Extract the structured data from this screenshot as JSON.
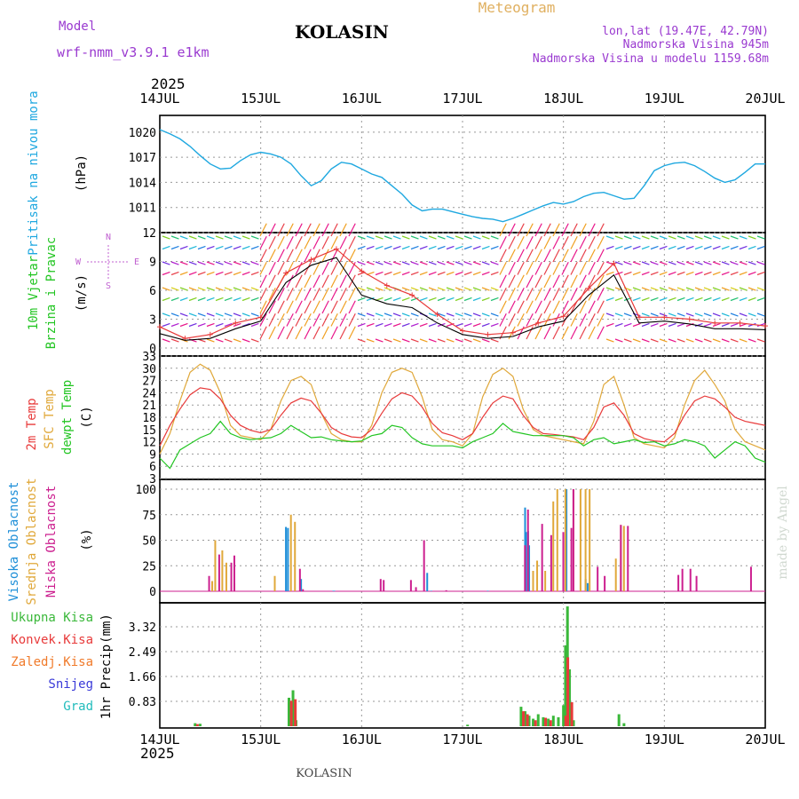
{
  "header": {
    "model_label": "Model",
    "model_name": "wrf-nmm_v3.9.1 e1km",
    "station": "KOLASIN",
    "product": "Meteogram",
    "coords": "lon,lat (19.47E, 42.79N)",
    "elevation": "Nadmorska Visina 945m",
    "model_elevation": "Nadmorska Visina u modelu 1159.68m",
    "year": "2025",
    "credit": "made by Angel",
    "footer_station": "KOLASIN"
  },
  "colors": {
    "pressure": "#1fa8e0",
    "temp2m": "#e83a3a",
    "sfc_temp": "#e0a83a",
    "dewpt": "#22c522",
    "cloud_high": "#1f8fd8",
    "cloud_mid": "#e0a83a",
    "cloud_low": "#cc1f8f",
    "precip_total": "#3ab83a",
    "precip_conv": "#e83a3a",
    "precip_frozen": "#f07a2a",
    "snow": "#3a3ad8",
    "hail": "#22bcbc",
    "model_title": "#9a3ad0",
    "meteogram_title": "#e0b060"
  },
  "chart_data": [
    {
      "type": "line",
      "panel": "pressure",
      "ylabel": "Pritisak na nivou mora",
      "unit": "(hPa)",
      "x_ticks": [
        "14JUL",
        "15JUL",
        "16JUL",
        "17JUL",
        "18JUL",
        "19JUL",
        "20JUL"
      ],
      "yticks": [
        "1020",
        "1017",
        "1014",
        "1011"
      ],
      "ylim": [
        1008,
        1022
      ],
      "series": [
        {
          "x": [
            0,
            0.1,
            0.2,
            0.3,
            0.4,
            0.5,
            0.6,
            0.7,
            0.8,
            0.9,
            1.0,
            1.1,
            1.2,
            1.3,
            1.4,
            1.5,
            1.6,
            1.7,
            1.8,
            1.9,
            2.0,
            2.1,
            2.2,
            2.3,
            2.4,
            2.5,
            2.6,
            2.7,
            2.8,
            2.9,
            3.0,
            3.1,
            3.2,
            3.3,
            3.4,
            3.5,
            3.6,
            3.7,
            3.8,
            3.9,
            4.0,
            4.1,
            4.2,
            4.3,
            4.4,
            4.5,
            4.6,
            4.7,
            4.8,
            4.9,
            5.0,
            5.1,
            5.2,
            5.3,
            5.4,
            5.5,
            5.6,
            5.7,
            5.8,
            5.9,
            6.0
          ],
          "values": [
            1020.3,
            1019.8,
            1019.2,
            1018.3,
            1017.2,
            1016.2,
            1015.6,
            1015.7,
            1016.6,
            1017.3,
            1017.6,
            1017.4,
            1017.0,
            1016.2,
            1014.8,
            1013.6,
            1014.2,
            1015.6,
            1016.4,
            1016.2,
            1015.6,
            1015.0,
            1014.6,
            1013.6,
            1012.6,
            1011.3,
            1010.6,
            1010.8,
            1010.8,
            1010.5,
            1010.2,
            1009.9,
            1009.7,
            1009.6,
            1009.3,
            1009.7,
            1010.2,
            1010.7,
            1011.2,
            1011.6,
            1011.4,
            1011.7,
            1012.3,
            1012.7,
            1012.8,
            1012.4,
            1012.0,
            1012.1,
            1013.6,
            1015.4,
            1016.0,
            1016.3,
            1016.4,
            1016.0,
            1015.3,
            1014.5,
            1014.0,
            1014.3,
            1015.2,
            1016.2,
            1016.2
          ]
        }
      ]
    },
    {
      "type": "line",
      "panel": "wind",
      "ylabel": "10m Vjetar",
      "ylabel2": "Brzina i Pravac",
      "unit": "(m/s)",
      "compass": {
        "n": "N",
        "w": "W",
        "e": "E",
        "s": "S"
      },
      "yticks": [
        "12",
        "9",
        "6",
        "3",
        "0"
      ],
      "ylim": [
        0,
        12
      ],
      "series": [
        {
          "name": "speed",
          "x": [
            0,
            0.25,
            0.5,
            0.75,
            1.0,
            1.25,
            1.5,
            1.75,
            2.0,
            2.25,
            2.5,
            2.75,
            3.0,
            3.25,
            3.5,
            3.75,
            4.0,
            4.25,
            4.5,
            4.75,
            5.0,
            5.25,
            5.5,
            5.75,
            6.0
          ],
          "values": [
            2.2,
            1.0,
            1.4,
            2.6,
            3.2,
            7.8,
            9.2,
            10.3,
            8.0,
            6.5,
            5.5,
            3.5,
            1.8,
            1.4,
            1.6,
            2.6,
            3.3,
            6.2,
            8.8,
            3.2,
            3.2,
            3.0,
            2.6,
            2.6,
            2.3
          ]
        },
        {
          "name": "gust",
          "x": [
            0,
            0.25,
            0.5,
            0.75,
            1.0,
            1.25,
            1.5,
            1.75,
            2.0,
            2.25,
            2.5,
            2.75,
            3.0,
            3.25,
            3.5,
            3.75,
            4.0,
            4.25,
            4.5,
            4.75,
            5.0,
            5.25,
            5.5,
            5.75,
            6.0
          ],
          "values": [
            1.5,
            0.8,
            1.0,
            2.0,
            2.8,
            6.8,
            8.6,
            9.4,
            5.5,
            4.6,
            4.2,
            2.6,
            1.4,
            1.0,
            1.2,
            2.2,
            2.8,
            5.5,
            7.6,
            2.6,
            2.8,
            2.5,
            2.0,
            2.0,
            1.9
          ]
        }
      ]
    },
    {
      "type": "line",
      "panel": "temperature",
      "ylabel": "2m Temp",
      "ylabel2": "SFC Temp",
      "ylabel3": "dewpt Temp",
      "unit": "(C)",
      "yticks": [
        "33",
        "30",
        "27",
        "24",
        "21",
        "18",
        "15",
        "12",
        "9",
        "6",
        "3"
      ],
      "ylim": [
        3,
        33
      ],
      "series": [
        {
          "name": "2m Temp",
          "x": [
            0,
            0.1,
            0.2,
            0.3,
            0.4,
            0.5,
            0.6,
            0.7,
            0.8,
            0.9,
            1.0,
            1.1,
            1.2,
            1.3,
            1.4,
            1.5,
            1.6,
            1.7,
            1.8,
            1.9,
            2.0,
            2.1,
            2.2,
            2.3,
            2.4,
            2.5,
            2.6,
            2.7,
            2.8,
            2.9,
            3.0,
            3.1,
            3.2,
            3.3,
            3.4,
            3.5,
            3.6,
            3.7,
            3.8,
            3.9,
            4.0,
            4.1,
            4.2,
            4.3,
            4.4,
            4.5,
            4.6,
            4.7,
            4.8,
            4.9,
            5.0,
            5.1,
            5.2,
            5.3,
            5.4,
            5.5,
            5.6,
            5.7,
            5.8,
            5.9,
            6.0
          ],
          "values": [
            11,
            16,
            20,
            23.5,
            25.2,
            24.8,
            22.5,
            18.5,
            16,
            14.8,
            14.2,
            15,
            18.5,
            21.5,
            22.7,
            22,
            19,
            15.5,
            14,
            13.2,
            13,
            15,
            19,
            22.5,
            24,
            23.2,
            20.5,
            16.5,
            14.2,
            13.5,
            12.5,
            14,
            18,
            21.5,
            23.2,
            22.5,
            18.5,
            15.5,
            14,
            13.8,
            13.5,
            13.2,
            12.5,
            15.5,
            20.5,
            21.5,
            18.5,
            14,
            12.8,
            12.2,
            12,
            14,
            18.5,
            22,
            23.2,
            22.5,
            20.5,
            18,
            17,
            16.5,
            16
          ]
        },
        {
          "name": "SFC Temp",
          "x": [
            0,
            0.1,
            0.2,
            0.3,
            0.4,
            0.5,
            0.6,
            0.7,
            0.8,
            0.9,
            1.0,
            1.1,
            1.2,
            1.3,
            1.4,
            1.5,
            1.6,
            1.7,
            1.8,
            1.9,
            2.0,
            2.1,
            2.2,
            2.3,
            2.4,
            2.5,
            2.6,
            2.7,
            2.8,
            2.9,
            3.0,
            3.1,
            3.2,
            3.3,
            3.4,
            3.5,
            3.6,
            3.7,
            3.8,
            3.9,
            4.0,
            4.1,
            4.2,
            4.3,
            4.4,
            4.5,
            4.6,
            4.7,
            4.8,
            4.9,
            5.0,
            5.1,
            5.2,
            5.3,
            5.4,
            5.5,
            5.6,
            5.7,
            5.8,
            5.9,
            6.0
          ],
          "values": [
            9,
            14,
            22,
            29,
            31,
            29.5,
            24,
            16,
            13.5,
            13,
            12.5,
            15,
            22,
            27,
            28,
            26,
            19,
            14,
            12.5,
            12,
            12,
            16,
            24,
            29,
            30,
            29,
            23,
            15,
            12.5,
            12,
            11,
            14,
            23,
            28.5,
            30,
            28,
            20,
            15,
            13.5,
            13,
            12.5,
            12,
            11.5,
            17,
            26,
            28,
            21,
            13,
            11.5,
            11,
            10.5,
            13,
            21,
            27,
            29.5,
            26,
            22,
            15,
            12,
            11,
            10
          ]
        },
        {
          "name": "dewpt Temp",
          "x": [
            0,
            0.1,
            0.2,
            0.3,
            0.4,
            0.5,
            0.6,
            0.7,
            0.8,
            0.9,
            1.0,
            1.1,
            1.2,
            1.3,
            1.4,
            1.5,
            1.6,
            1.7,
            1.8,
            1.9,
            2.0,
            2.1,
            2.2,
            2.3,
            2.4,
            2.5,
            2.6,
            2.7,
            2.8,
            2.9,
            3.0,
            3.1,
            3.2,
            3.3,
            3.4,
            3.5,
            3.6,
            3.7,
            3.8,
            3.9,
            4.0,
            4.1,
            4.2,
            4.3,
            4.4,
            4.5,
            4.6,
            4.7,
            4.8,
            4.9,
            5.0,
            5.1,
            5.2,
            5.3,
            5.4,
            5.5,
            5.6,
            5.7,
            5.8,
            5.9,
            6.0
          ],
          "values": [
            8,
            5.5,
            10,
            11.5,
            13,
            14,
            17,
            14,
            13,
            12.5,
            12.8,
            13,
            14,
            16,
            14.5,
            13,
            13.2,
            12.5,
            12.2,
            12,
            12.2,
            13.5,
            14,
            16,
            15.5,
            13,
            11.5,
            11,
            11,
            11,
            10.5,
            12,
            13,
            14,
            16.5,
            14.5,
            14,
            13.5,
            13.5,
            13.5,
            13.5,
            13,
            11,
            12.5,
            13,
            11.5,
            12,
            12.5,
            11.8,
            12,
            11,
            11.5,
            12.5,
            12,
            11,
            8,
            10,
            12,
            11,
            8,
            7
          ]
        }
      ]
    },
    {
      "type": "bar",
      "panel": "cloud",
      "ylabel": "Visoka Oblacnost",
      "ylabel2": "Srednja Oblacnost",
      "ylabel3": "Niska Oblacnost",
      "unit": "(%)",
      "yticks": [
        "100",
        "75",
        "50",
        "25",
        "0"
      ],
      "ylim": [
        0,
        100
      ],
      "series": [
        {
          "name": "Visoka Oblacnost",
          "x": [
            1.25,
            1.27,
            1.4,
            1.72,
            1.73,
            2.65,
            2.69,
            3.25,
            3.62,
            3.63,
            3.65,
            3.66,
            4.03,
            4.22,
            4.24
          ],
          "values": [
            63,
            62,
            12,
            0.5,
            0.5,
            18,
            0.5,
            0.5,
            82,
            58,
            59,
            45,
            100,
            12,
            8
          ]
        },
        {
          "name": "Srednja Oblacnost",
          "x": [
            0.5,
            0.53,
            0.6,
            0.64,
            0.72,
            1.12,
            1.28,
            1.32,
            3.68,
            3.72,
            3.8,
            3.88,
            3.92,
            4.0,
            4.08,
            4.15,
            4.2,
            4.24,
            4.5,
            4.55,
            4.58
          ],
          "values": [
            10,
            50,
            40,
            28,
            8,
            15,
            75,
            68,
            20,
            30,
            20,
            88,
            100,
            100,
            100,
            100,
            100,
            100,
            32,
            65,
            64
          ]
        },
        {
          "name": "Niska Oblacnost",
          "x": [
            0.45,
            0.55,
            0.67,
            0.7,
            1.35,
            1.38,
            2.15,
            2.18,
            2.45,
            2.5,
            2.58,
            2.8,
            3.58,
            3.61,
            3.75,
            3.84,
            3.96,
            4.04,
            4.06,
            4.3,
            4.37,
            4.53,
            4.6,
            5.1,
            5.14,
            5.22,
            5.28,
            5.82
          ],
          "values": [
            15,
            36,
            28,
            35,
            22,
            2,
            12,
            11,
            11,
            4,
            50,
            1,
            45,
            80,
            66,
            55,
            58,
            62,
            100,
            24,
            15,
            65,
            64,
            16,
            22,
            22,
            15,
            24
          ]
        }
      ]
    },
    {
      "type": "bar",
      "panel": "precip",
      "ylabel": "1hr Precip",
      "unit": "(mm)",
      "legend": [
        "Ukupna Kisa",
        "Konvek.Kisa",
        "Zaledj.Kisa",
        "Snijeg",
        "Grad"
      ],
      "yticks": [
        "3.32",
        "2.49",
        "1.66",
        "0.83"
      ],
      "ylim": [
        0,
        4.1
      ],
      "series": [
        {
          "name": "Ukupna Kisa",
          "x": [
            0.35,
            0.4,
            1.28,
            1.32,
            1.35,
            3.05,
            3.58,
            3.62,
            3.66,
            3.7,
            3.75,
            3.8,
            3.85,
            3.9,
            3.95,
            4.0,
            4.02,
            4.04,
            4.06,
            4.1,
            4.55,
            4.6
          ],
          "values": [
            0.1,
            0.08,
            0.95,
            1.2,
            0.2,
            0.05,
            0.65,
            0.5,
            0.35,
            0.25,
            0.4,
            0.3,
            0.25,
            0.35,
            0.3,
            0.7,
            2.7,
            4.0,
            1.9,
            0.2,
            0.4,
            0.1
          ]
        },
        {
          "name": "Konvek.Kisa",
          "x": [
            0.36,
            1.29,
            1.33,
            3.59,
            3.63,
            3.71,
            3.81,
            3.86,
            4.01,
            4.03,
            4.07
          ],
          "values": [
            0.07,
            0.85,
            0.9,
            0.5,
            0.4,
            0.2,
            0.28,
            0.2,
            0.35,
            2.3,
            0.8
          ]
        }
      ]
    }
  ]
}
